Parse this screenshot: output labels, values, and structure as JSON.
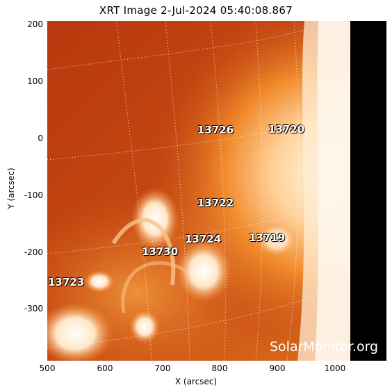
{
  "title": "XRT Image  2-Jul-2024 05:40:08.867",
  "axes": {
    "xlabel": "X (arcsec)",
    "ylabel": "Y (arcsec)",
    "xticks": [
      "500",
      "600",
      "700",
      "800",
      "900",
      "1000"
    ],
    "yticks": [
      "200",
      "100",
      "0",
      "-100",
      "-200",
      "-300"
    ]
  },
  "regions": [
    "13726",
    "13720",
    "13722",
    "13724",
    "13719",
    "13730",
    "13723"
  ],
  "watermark": "SolarMonitor.org",
  "colors": {
    "sun_dark": "#b8380e",
    "sun_mid": "#e8701a",
    "sun_bright": "#ffe6bf",
    "space": "#000000"
  }
}
